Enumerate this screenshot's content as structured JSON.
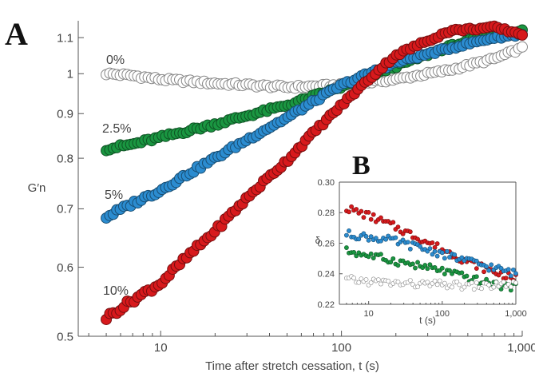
{
  "figure": {
    "panel_a": "A",
    "panel_b": "B"
  },
  "chart_data": [
    {
      "type": "scatter",
      "panel": "A",
      "xlabel": "Time after stretch cessation, t (s)",
      "ylabel": "G′n",
      "xscale": "log",
      "yscale": "log",
      "xlim": [
        3.5,
        1000
      ],
      "ylim": [
        0.5,
        1.15
      ],
      "xticks": [
        10,
        100,
        1000
      ],
      "xtick_labels": [
        "10",
        "100",
        "1,000"
      ],
      "yticks": [
        0.5,
        0.6,
        0.7,
        0.8,
        0.9,
        1.0,
        1.1
      ],
      "ytick_labels": [
        "0.5",
        "0.6",
        "0.7",
        "0.8",
        "0.9",
        "1",
        "1.1"
      ],
      "series": [
        {
          "name": "0%",
          "color": "#ffffff",
          "x": [
            5,
            7,
            10,
            20,
            50,
            100,
            200,
            400,
            700,
            1000
          ],
          "y": [
            1.0,
            0.995,
            0.985,
            0.975,
            0.965,
            0.97,
            0.985,
            1.01,
            1.04,
            1.07
          ]
        },
        {
          "name": "2.5%",
          "color": "#1a9641",
          "x": [
            5,
            7,
            10,
            20,
            50,
            100,
            200,
            400,
            700,
            1000
          ],
          "y": [
            0.82,
            0.83,
            0.845,
            0.875,
            0.92,
            0.965,
            1.02,
            1.075,
            1.11,
            1.12
          ]
        },
        {
          "name": "5%",
          "color": "#2b8cd0",
          "x": [
            5,
            7,
            10,
            20,
            50,
            100,
            200,
            400,
            700,
            1000
          ],
          "y": [
            0.685,
            0.71,
            0.735,
            0.8,
            0.89,
            0.97,
            1.03,
            1.07,
            1.1,
            1.11
          ]
        },
        {
          "name": "10%",
          "color": "#d7191c",
          "x": [
            5,
            7,
            10,
            20,
            50,
            100,
            200,
            400,
            700,
            1000
          ],
          "y": [
            0.525,
            0.55,
            0.575,
            0.66,
            0.795,
            0.92,
            1.05,
            1.12,
            1.13,
            1.11
          ]
        }
      ]
    },
    {
      "type": "scatter",
      "panel": "B",
      "xlabel": "t (s)",
      "ylabel": "δ",
      "xscale": "log",
      "xlim": [
        4,
        1000
      ],
      "ylim": [
        0.22,
        0.3
      ],
      "xticks": [
        10,
        100,
        1000
      ],
      "xtick_labels": [
        "10",
        "100",
        "1,000"
      ],
      "yticks": [
        0.22,
        0.24,
        0.26,
        0.28,
        0.3
      ],
      "ytick_labels": [
        "0.22",
        "0.24",
        "0.26",
        "0.28",
        "0.30"
      ],
      "series": [
        {
          "color": "#d7191c",
          "x": [
            5,
            10,
            20,
            50,
            100,
            200,
            400,
            700,
            1000
          ],
          "y": [
            0.283,
            0.278,
            0.272,
            0.263,
            0.256,
            0.249,
            0.243,
            0.239,
            0.237
          ]
        },
        {
          "color": "#2b8cd0",
          "x": [
            5,
            10,
            20,
            50,
            100,
            200,
            400,
            700,
            1000
          ],
          "y": [
            0.266,
            0.264,
            0.262,
            0.257,
            0.253,
            0.249,
            0.245,
            0.242,
            0.24
          ]
        },
        {
          "color": "#1a9641",
          "x": [
            5,
            10,
            20,
            50,
            100,
            200,
            400,
            700,
            1000
          ],
          "y": [
            0.255,
            0.252,
            0.249,
            0.245,
            0.242,
            0.238,
            0.234,
            0.232,
            0.231
          ]
        },
        {
          "color": "#ffffff",
          "x": [
            5,
            10,
            20,
            50,
            100,
            200,
            400,
            700,
            1000
          ],
          "y": [
            0.236,
            0.235,
            0.234,
            0.233,
            0.233,
            0.232,
            0.232,
            0.233,
            0.233
          ]
        }
      ]
    }
  ]
}
